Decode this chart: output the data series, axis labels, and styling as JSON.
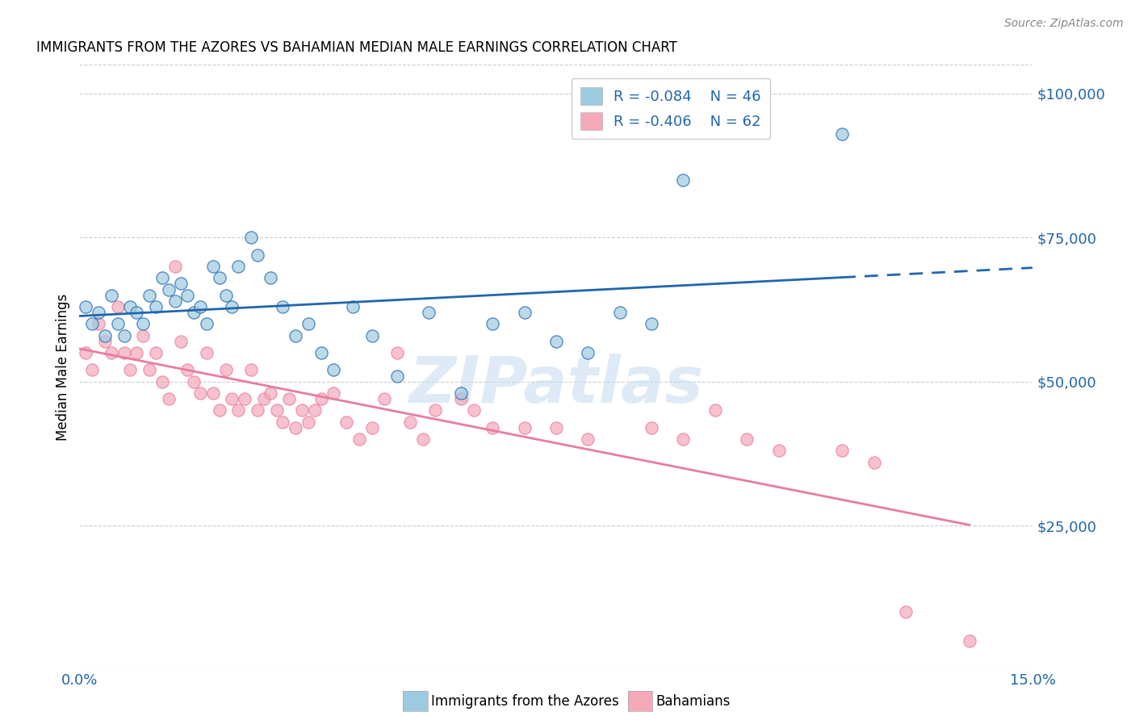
{
  "title": "IMMIGRANTS FROM THE AZORES VS BAHAMIAN MEDIAN MALE EARNINGS CORRELATION CHART",
  "source": "Source: ZipAtlas.com",
  "ylabel": "Median Male Earnings",
  "yticks": [
    0,
    25000,
    50000,
    75000,
    100000
  ],
  "ytick_labels": [
    "",
    "$25,000",
    "$50,000",
    "$75,000",
    "$100,000"
  ],
  "xlim": [
    0.0,
    0.15
  ],
  "ylim": [
    0,
    105000
  ],
  "legend_r1": "R = -0.084",
  "legend_n1": "N = 46",
  "legend_r2": "R = -0.406",
  "legend_n2": "N = 62",
  "color_blue": "#9ecae1",
  "color_pink": "#f4a9b8",
  "color_blue_line": "#2166ac",
  "color_pink_line": "#e87ca0",
  "watermark": "ZIPatlas",
  "azores_x": [
    0.001,
    0.002,
    0.003,
    0.004,
    0.005,
    0.006,
    0.007,
    0.008,
    0.009,
    0.01,
    0.011,
    0.012,
    0.013,
    0.014,
    0.015,
    0.016,
    0.017,
    0.018,
    0.019,
    0.02,
    0.021,
    0.022,
    0.023,
    0.024,
    0.025,
    0.027,
    0.028,
    0.03,
    0.032,
    0.034,
    0.036,
    0.038,
    0.04,
    0.043,
    0.046,
    0.05,
    0.055,
    0.06,
    0.065,
    0.07,
    0.075,
    0.08,
    0.085,
    0.09,
    0.095,
    0.12
  ],
  "azores_y": [
    63000,
    60000,
    62000,
    58000,
    65000,
    60000,
    58000,
    63000,
    62000,
    60000,
    65000,
    63000,
    68000,
    66000,
    64000,
    67000,
    65000,
    62000,
    63000,
    60000,
    70000,
    68000,
    65000,
    63000,
    70000,
    75000,
    72000,
    68000,
    63000,
    58000,
    60000,
    55000,
    52000,
    63000,
    58000,
    51000,
    62000,
    48000,
    60000,
    62000,
    57000,
    55000,
    62000,
    60000,
    85000,
    93000
  ],
  "bahamian_x": [
    0.001,
    0.002,
    0.003,
    0.004,
    0.005,
    0.006,
    0.007,
    0.008,
    0.009,
    0.01,
    0.011,
    0.012,
    0.013,
    0.014,
    0.015,
    0.016,
    0.017,
    0.018,
    0.019,
    0.02,
    0.021,
    0.022,
    0.023,
    0.024,
    0.025,
    0.026,
    0.027,
    0.028,
    0.029,
    0.03,
    0.031,
    0.032,
    0.033,
    0.034,
    0.035,
    0.036,
    0.037,
    0.038,
    0.04,
    0.042,
    0.044,
    0.046,
    0.048,
    0.05,
    0.052,
    0.054,
    0.056,
    0.06,
    0.062,
    0.065,
    0.07,
    0.075,
    0.08,
    0.09,
    0.095,
    0.1,
    0.105,
    0.11,
    0.12,
    0.125,
    0.13,
    0.14
  ],
  "bahamian_y": [
    55000,
    52000,
    60000,
    57000,
    55000,
    63000,
    55000,
    52000,
    55000,
    58000,
    52000,
    55000,
    50000,
    47000,
    70000,
    57000,
    52000,
    50000,
    48000,
    55000,
    48000,
    45000,
    52000,
    47000,
    45000,
    47000,
    52000,
    45000,
    47000,
    48000,
    45000,
    43000,
    47000,
    42000,
    45000,
    43000,
    45000,
    47000,
    48000,
    43000,
    40000,
    42000,
    47000,
    55000,
    43000,
    40000,
    45000,
    47000,
    45000,
    42000,
    42000,
    42000,
    40000,
    42000,
    40000,
    45000,
    40000,
    38000,
    38000,
    36000,
    10000,
    5000
  ]
}
